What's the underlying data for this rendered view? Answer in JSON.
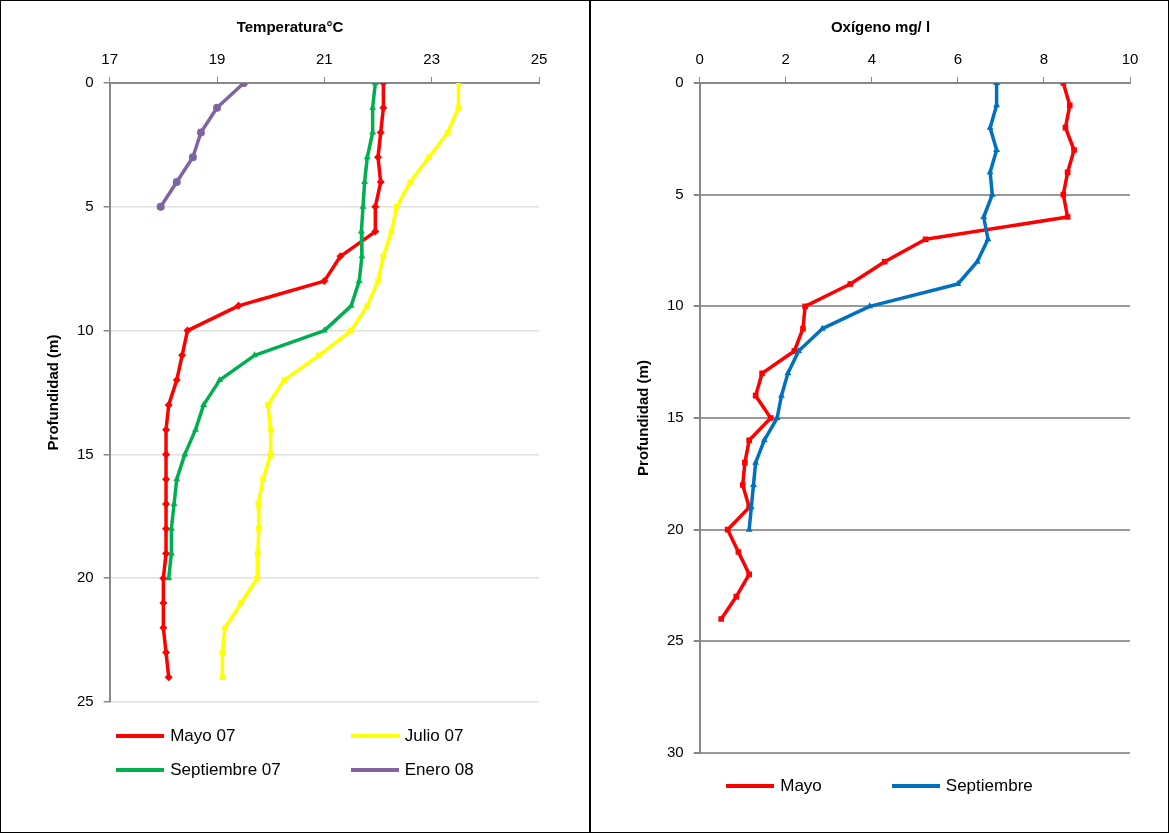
{
  "chart_data": [
    {
      "type": "line",
      "title": "Temperatura°C",
      "ylabel": "Profundidad (m)",
      "xlim": [
        17,
        25
      ],
      "xticks": [
        17,
        19,
        21,
        23,
        25
      ],
      "ylim": [
        25,
        0
      ],
      "yticks": [
        0,
        5,
        10,
        15,
        20,
        25
      ],
      "grid": "y",
      "legend": "bottom",
      "line_style": "solid",
      "series": [
        {
          "name": "Mayo 07",
          "color": "#ff0000",
          "marker": "diamond",
          "x": [
            22.1,
            22.1,
            22.05,
            22.0,
            22.05,
            21.95,
            21.95,
            21.3,
            21.0,
            19.4,
            18.45,
            18.35,
            18.25,
            18.1,
            18.05,
            18.05,
            18.05,
            18.05,
            18.05,
            18.05,
            18.0,
            18.0,
            18.0,
            18.05,
            18.1
          ],
          "values": [
            0,
            1,
            2,
            3,
            4,
            5,
            6,
            7,
            8,
            9,
            10,
            11,
            12,
            13,
            14,
            15,
            16,
            17,
            18,
            19,
            20,
            21,
            22,
            23,
            24
          ]
        },
        {
          "name": "Julio 07",
          "color": "#ffff00",
          "marker": "square",
          "x": [
            23.5,
            23.5,
            23.3,
            22.95,
            22.6,
            22.35,
            22.25,
            22.1,
            22.0,
            21.8,
            21.5,
            20.9,
            20.25,
            19.95,
            20.0,
            20.0,
            19.86,
            19.77,
            19.78,
            19.76,
            19.75,
            19.45,
            19.15,
            19.1,
            19.1
          ],
          "values": [
            0,
            1,
            2,
            3,
            4,
            5,
            6,
            7,
            8,
            9,
            10,
            11,
            12,
            13,
            14,
            15,
            16,
            17,
            18,
            19,
            20,
            21,
            22,
            23,
            24
          ]
        },
        {
          "name": "Septiembre 07",
          "color": "#00b050",
          "marker": "triangle",
          "x": [
            21.95,
            21.9,
            21.9,
            21.8,
            21.75,
            21.72,
            21.69,
            21.7,
            21.65,
            21.5,
            21.0,
            19.7,
            19.05,
            18.75,
            18.6,
            18.4,
            18.25,
            18.2,
            18.15,
            18.15,
            18.1
          ],
          "values": [
            0,
            1,
            2,
            3,
            4,
            5,
            6,
            7,
            8,
            9,
            10,
            11,
            12,
            13,
            14,
            15,
            16,
            17,
            18,
            19,
            20
          ]
        },
        {
          "name": "Enero 08",
          "color": "#8064a2",
          "marker": "circle",
          "x": [
            19.5,
            19.0,
            18.7,
            18.55,
            18.25,
            17.95
          ],
          "values": [
            0,
            1,
            2,
            3,
            4,
            5
          ]
        }
      ]
    },
    {
      "type": "line",
      "title": "Oxígeno mg/ l",
      "ylabel": "Profundidad (m)",
      "xlim": [
        0,
        10
      ],
      "xticks": [
        0,
        2,
        4,
        6,
        8,
        10
      ],
      "ylim": [
        30,
        0
      ],
      "yticks": [
        0,
        5,
        10,
        15,
        20,
        25,
        30
      ],
      "grid": "y",
      "legend": "bottom",
      "line_style": "solid",
      "series": [
        {
          "name": "Mayo",
          "color": "#ff0000",
          "marker": "square",
          "x": [
            8.45,
            8.6,
            8.5,
            8.7,
            8.55,
            8.45,
            8.55,
            5.25,
            4.3,
            3.5,
            2.45,
            2.4,
            2.2,
            1.45,
            1.3,
            1.65,
            1.15,
            1.05,
            1.0,
            1.15,
            0.65,
            0.9,
            1.15,
            0.85,
            0.5
          ],
          "values": [
            0,
            1,
            2,
            3,
            4,
            5,
            6,
            7,
            8,
            9,
            10,
            11,
            12,
            13,
            14,
            15,
            16,
            17,
            18,
            19,
            20,
            21,
            22,
            23,
            24
          ]
        },
        {
          "name": "Septiembre",
          "color": "#0070c0",
          "marker": "triangle",
          "x": [
            6.9,
            6.9,
            6.75,
            6.9,
            6.75,
            6.8,
            6.6,
            6.7,
            6.45,
            6.0,
            3.95,
            2.85,
            2.3,
            2.05,
            1.9,
            1.8,
            1.5,
            1.3,
            1.25,
            1.2,
            1.15
          ],
          "values": [
            0,
            1,
            2,
            3,
            4,
            5,
            6,
            7,
            8,
            9,
            10,
            11,
            12,
            13,
            14,
            15,
            16,
            17,
            18,
            19,
            20
          ]
        }
      ]
    }
  ]
}
